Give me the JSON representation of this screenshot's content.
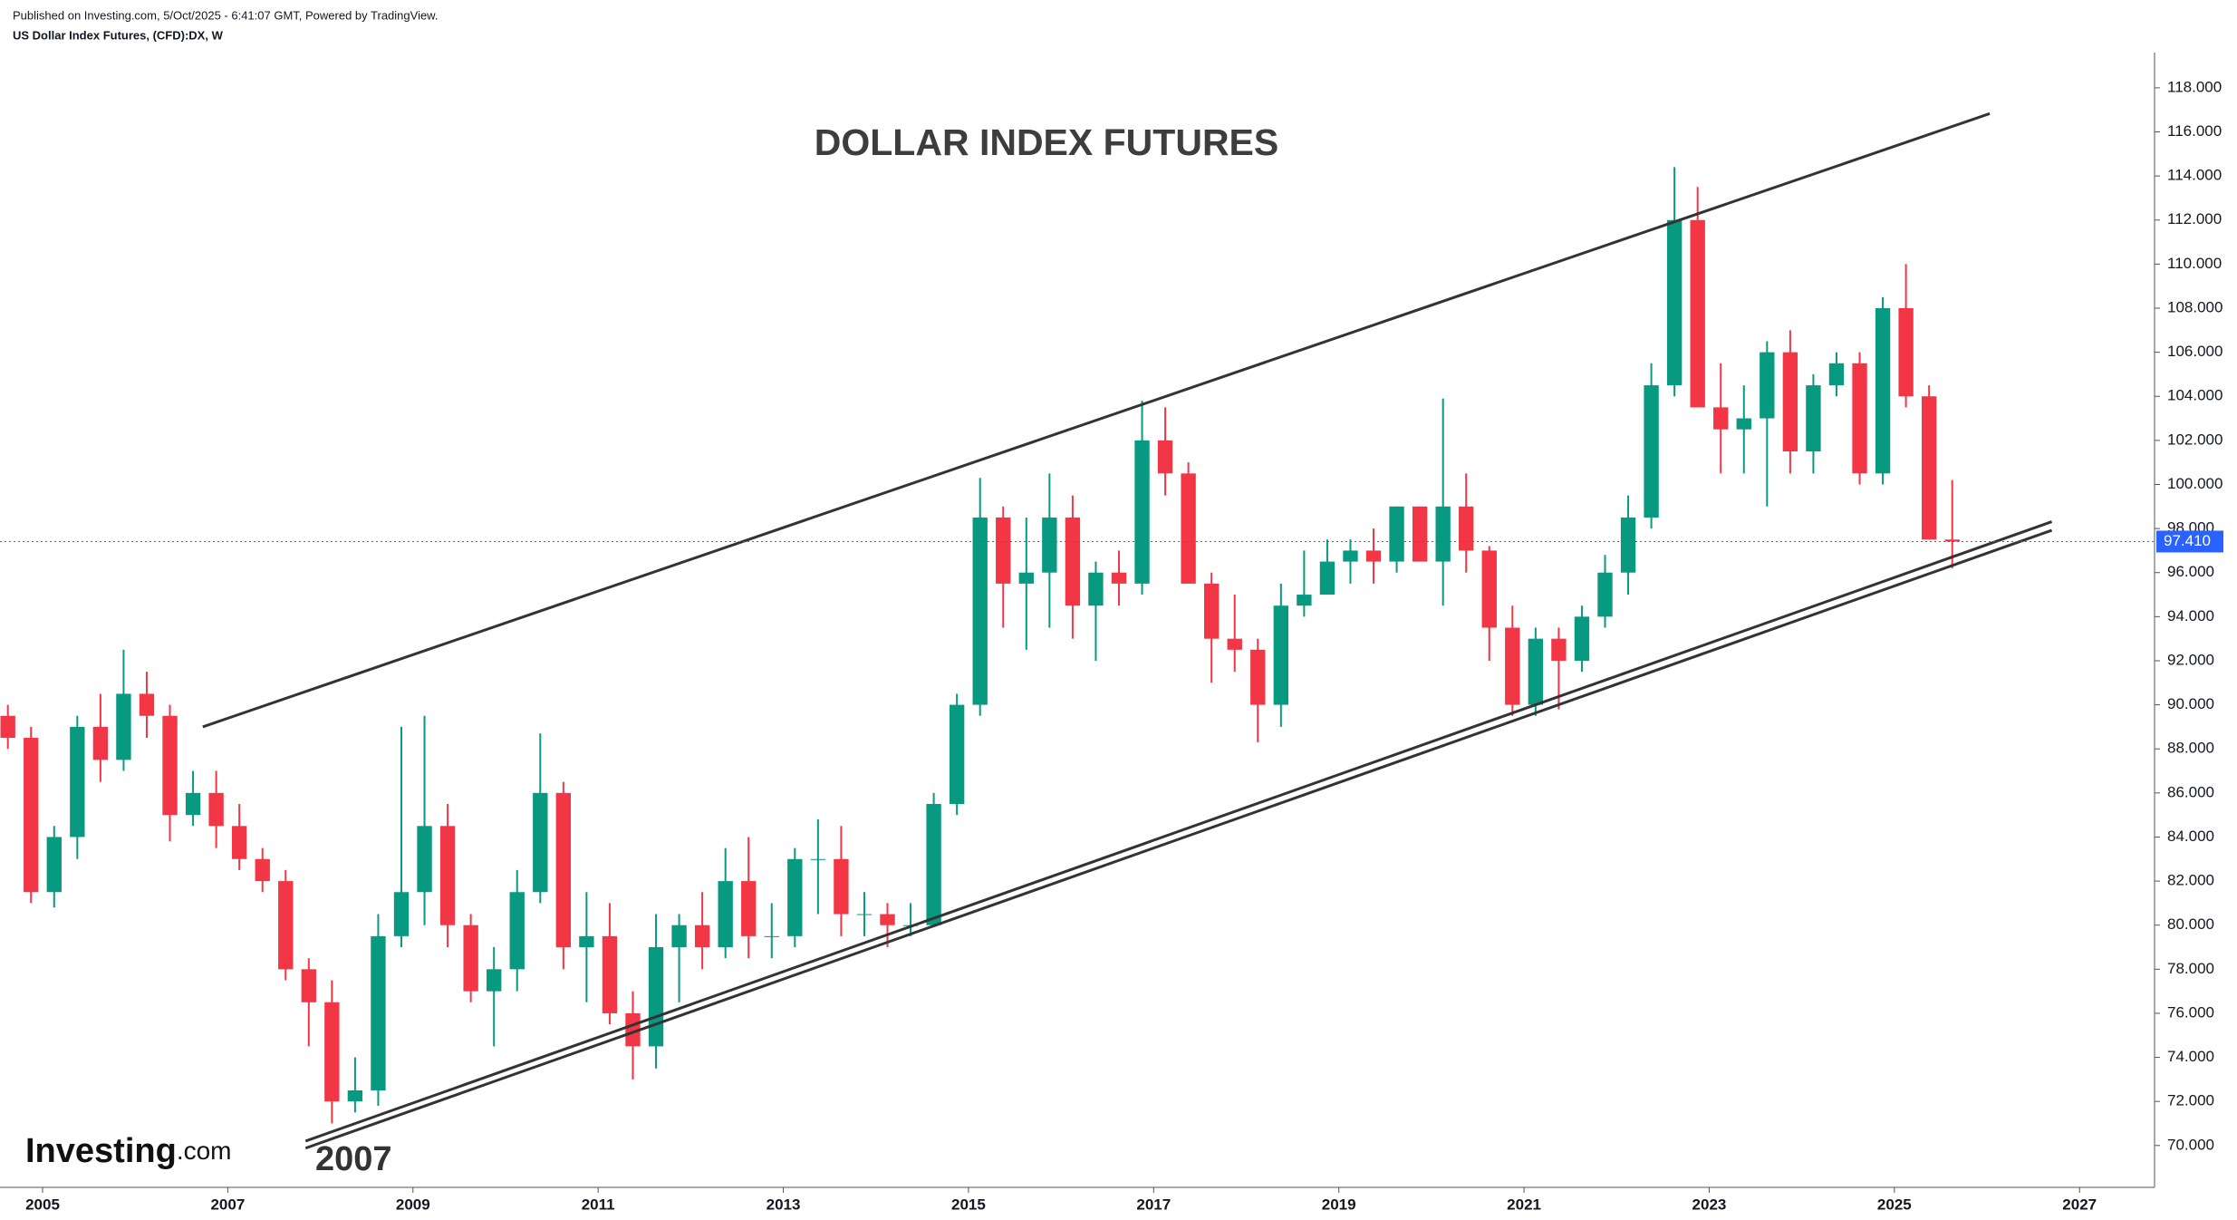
{
  "header": {
    "published": "Published on Investing.com, 5/Oct/2025 - 6:41:07 GMT, Powered by TradingView.",
    "symbol": "US Dollar Index Futures, (CFD):DX, W"
  },
  "logo": {
    "name": "Investing",
    "suffix": ".com"
  },
  "chart_data": {
    "type": "candlestick",
    "title": "DOLLAR INDEX FUTURES",
    "x": [
      2004.625,
      2004.875,
      2005.125,
      2005.375,
      2005.625,
      2005.875,
      2006.125,
      2006.375,
      2006.625,
      2006.875,
      2007.125,
      2007.375,
      2007.625,
      2007.875,
      2008.125,
      2008.375,
      2008.625,
      2008.875,
      2009.125,
      2009.375,
      2009.625,
      2009.875,
      2010.125,
      2010.375,
      2010.625,
      2010.875,
      2011.125,
      2011.375,
      2011.625,
      2011.875,
      2012.125,
      2012.375,
      2012.625,
      2012.875,
      2013.125,
      2013.375,
      2013.625,
      2013.875,
      2014.125,
      2014.375,
      2014.625,
      2014.875,
      2015.125,
      2015.375,
      2015.625,
      2015.875,
      2016.125,
      2016.375,
      2016.625,
      2016.875,
      2017.125,
      2017.375,
      2017.625,
      2017.875,
      2018.125,
      2018.375,
      2018.625,
      2018.875,
      2019.125,
      2019.375,
      2019.625,
      2019.875,
      2020.125,
      2020.375,
      2020.625,
      2020.875,
      2021.125,
      2021.375,
      2021.625,
      2021.875,
      2022.125,
      2022.375,
      2022.625,
      2022.875,
      2023.125,
      2023.375,
      2023.625,
      2023.875,
      2024.125,
      2024.375,
      2024.625,
      2024.875,
      2025.125,
      2025.375,
      2025.625
    ],
    "open": [
      89.5,
      88.5,
      81.5,
      84,
      89,
      87.5,
      90.5,
      89.5,
      85,
      86,
      84.5,
      83,
      82,
      78,
      76.5,
      72,
      72.5,
      79.5,
      81.5,
      84.5,
      80,
      77,
      78,
      81.5,
      86,
      79,
      79.5,
      76,
      74.5,
      79,
      80,
      79,
      82,
      79.5,
      79.5,
      83,
      83,
      80.5,
      80.5,
      80,
      80,
      85.5,
      90,
      98.5,
      95.5,
      96,
      98.5,
      94.5,
      96,
      95.5,
      102,
      100.5,
      95.5,
      93,
      92.5,
      90,
      94.5,
      95,
      96.5,
      97,
      96.5,
      99,
      96.5,
      99,
      97,
      93.5,
      90,
      93,
      92,
      94,
      96,
      98.5,
      104.5,
      112,
      103.5,
      102.5,
      103,
      106,
      101.5,
      104.5,
      105.5,
      100.5,
      108,
      104,
      97.5
    ],
    "high": [
      90,
      89,
      84.5,
      89.5,
      90.5,
      92.5,
      91.5,
      90,
      87,
      87,
      85.5,
      83.5,
      82.5,
      78.5,
      77.5,
      74,
      80.5,
      89,
      89.5,
      85.5,
      80.5,
      79,
      82.5,
      88.7,
      86.5,
      81.5,
      81,
      77,
      80.5,
      80.5,
      81.5,
      83.5,
      84,
      81,
      83.5,
      84.8,
      84.5,
      81.5,
      81,
      81,
      86,
      90.5,
      100.3,
      99,
      98.5,
      100.5,
      99.5,
      96.5,
      97,
      103.8,
      103.5,
      101,
      96,
      95,
      93,
      95.5,
      97,
      97.5,
      97.5,
      98,
      99,
      99,
      103.9,
      100.5,
      97.2,
      94.5,
      93.5,
      93.5,
      94.5,
      96.8,
      99.5,
      105.5,
      114.4,
      113.5,
      105.5,
      104.5,
      106.5,
      107,
      105,
      106,
      106,
      108.5,
      110,
      104.5,
      100.2
    ],
    "low": [
      88,
      81,
      80.8,
      83,
      86.5,
      87,
      88.5,
      83.8,
      84.5,
      83.5,
      82.5,
      81.5,
      77.5,
      74.5,
      71,
      71.5,
      71.8,
      79,
      80,
      79,
      76.5,
      74.5,
      77,
      81,
      78,
      76.5,
      75.5,
      73,
      73.5,
      76.5,
      78,
      78.5,
      78.5,
      78.5,
      79,
      80.5,
      79.5,
      79.5,
      79,
      79.5,
      80,
      85,
      89.5,
      93.5,
      92.5,
      93.5,
      93,
      92,
      94.5,
      95,
      99.5,
      95.5,
      91,
      91.5,
      88.3,
      89,
      94,
      95,
      95.5,
      95.5,
      96,
      96.5,
      94.5,
      96,
      92,
      89.5,
      89.5,
      89.8,
      91.5,
      93.5,
      95,
      98,
      104,
      103.5,
      100.5,
      100.5,
      99,
      100.5,
      100.5,
      104,
      100,
      100,
      103.5,
      97.5,
      96.2
    ],
    "close": [
      88.5,
      81.5,
      84,
      89,
      87.5,
      90.5,
      89.5,
      85,
      86,
      84.5,
      83,
      82,
      78,
      76.5,
      72,
      72.5,
      79.5,
      81.5,
      84.5,
      80,
      77,
      78,
      81.5,
      86,
      79,
      79.5,
      76,
      74.5,
      79,
      80,
      79,
      82,
      79.5,
      79.5,
      83,
      83,
      80.5,
      80.5,
      80,
      80,
      85.5,
      90,
      98.5,
      95.5,
      96,
      98.5,
      94.5,
      96,
      95.5,
      102,
      100.5,
      95.5,
      93,
      92.5,
      90,
      94.5,
      95,
      96.5,
      97,
      96.5,
      99,
      96.5,
      99,
      97,
      93.5,
      90,
      93,
      92,
      94,
      96,
      98.5,
      104.5,
      112,
      103.5,
      102.5,
      103,
      106,
      101.5,
      104.5,
      105.5,
      100.5,
      108,
      104,
      97.5,
      97.41
    ],
    "up_color": "#089981",
    "down_color": "#f23645",
    "xlim": [
      2004.54,
      2027.81
    ],
    "xticks": [
      2005,
      2007,
      2009,
      2011,
      2013,
      2015,
      2017,
      2019,
      2021,
      2023,
      2025,
      2027
    ],
    "ylim": [
      68.1,
      119.6
    ],
    "yticks": [
      {
        "value": 70,
        "label": "70.000"
      },
      {
        "value": 72,
        "label": "72.000"
      },
      {
        "value": 74,
        "label": "74.000"
      },
      {
        "value": 76,
        "label": "76.000"
      },
      {
        "value": 78,
        "label": "78.000"
      },
      {
        "value": 80,
        "label": "80.000"
      },
      {
        "value": 82,
        "label": "82.000"
      },
      {
        "value": 84,
        "label": "84.000"
      },
      {
        "value": 86,
        "label": "86.000"
      },
      {
        "value": 88,
        "label": "88.000"
      },
      {
        "value": 90,
        "label": "90.000"
      },
      {
        "value": 92,
        "label": "92.000"
      },
      {
        "value": 94,
        "label": "94.000"
      },
      {
        "value": 96,
        "label": "96.000"
      },
      {
        "value": 98,
        "label": "98.000"
      },
      {
        "value": 100,
        "label": "100.000"
      },
      {
        "value": 102,
        "label": "102.000"
      },
      {
        "value": 104,
        "label": "104.000"
      },
      {
        "value": 106,
        "label": "106.000"
      },
      {
        "value": 108,
        "label": "108.000"
      },
      {
        "value": 110,
        "label": "110.000"
      },
      {
        "value": 112,
        "label": "112.000"
      },
      {
        "value": 114,
        "label": "114.000"
      },
      {
        "value": 116,
        "label": "116.000"
      },
      {
        "value": 118,
        "label": "118.000"
      }
    ],
    "grid": false,
    "last_price": {
      "value": 97.41,
      "label": "97.410",
      "color": "#2962ff"
    },
    "trendlines": [
      {
        "x": [
          2006.73,
          2026.03
        ],
        "y": [
          89.0,
          116.83
        ]
      },
      {
        "x": [
          2007.84,
          2026.7
        ],
        "y": [
          70.2,
          98.31
        ]
      },
      {
        "x": [
          2007.84,
          2026.7
        ],
        "y": [
          69.88,
          97.92
        ]
      }
    ],
    "trendline_color": "#333333",
    "annotation": "2007"
  }
}
